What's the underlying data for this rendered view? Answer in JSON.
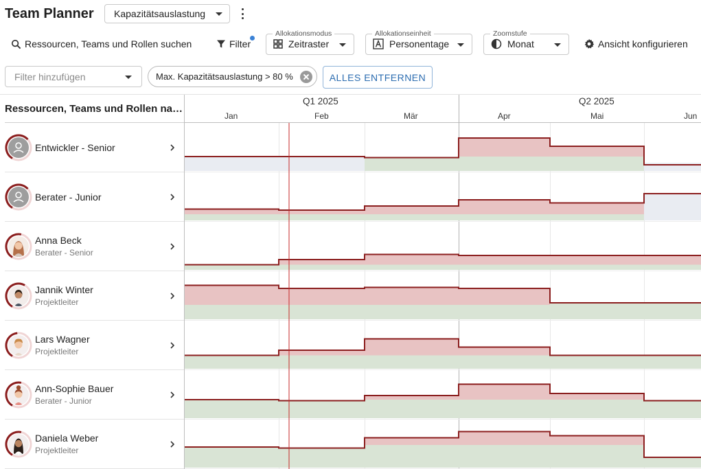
{
  "app": {
    "title": "Team Planner",
    "view": "Kapazitätsauslastung"
  },
  "toolbar": {
    "search_label": "Ressourcen, Teams und Rollen suchen",
    "filter_label": "Filter",
    "allocation_mode": {
      "legend": "Allokationsmodus",
      "value": "Zeitraster"
    },
    "allocation_unit": {
      "legend": "Allokationseinheit",
      "value": "Personentage"
    },
    "zoom": {
      "legend": "Zoomstufe",
      "value": "Monat"
    },
    "configure_label": "Ansicht konfigurieren"
  },
  "filters": {
    "add_placeholder": "Filter hinzufügen",
    "active_chip": "Max. Kapazitätsauslastung > 80 %",
    "clear_all": "ALLES ENTFERNEN"
  },
  "list_header": "Ressourcen, Teams und Rollen nach Kapazitätsauslastung",
  "timeline": {
    "quarters": [
      "Q1 2025",
      "Q2 2025"
    ],
    "months": [
      "Jan",
      "Feb",
      "Mär",
      "Apr",
      "Mai",
      "Jun"
    ]
  },
  "colors": {
    "over": "#e8c3c3",
    "over_line": "#8b1e1e",
    "under": "#d9e4d5",
    "under_line": "#4f7a64",
    "free": "#e9ecf2",
    "today": "#c62828"
  },
  "rows": [
    {
      "name": "Entwickler - Senior",
      "role": "",
      "avatar": "role-placeholder-icon",
      "ring": 0.55,
      "demand": [
        0,
        0,
        0.65,
        1.6,
        1.2,
        0
      ],
      "capacity": [
        0.7,
        0.7,
        0.7,
        0.7,
        0.7,
        0.3
      ]
    },
    {
      "name": "Berater - Junior",
      "role": "",
      "avatar": "role-placeholder-icon",
      "ring": 0.55,
      "demand": [
        0.55,
        0.5,
        0.7,
        1.0,
        0.85,
        0
      ],
      "capacity": [
        0.3,
        0.3,
        0.3,
        0.3,
        0.3,
        1.3
      ]
    },
    {
      "name": "Anna Beck",
      "role": "Berater - Senior",
      "avatar": "woman-avatar",
      "ring": 0.45,
      "demand": [
        0.25,
        0.5,
        0.75,
        0.7,
        0.7,
        0.7
      ],
      "capacity": [
        0.25,
        0.25,
        0.25,
        0.25,
        0.25,
        0.25
      ]
    },
    {
      "name": "Jannik Winter",
      "role": "Projektleiter",
      "avatar": "man-beard-avatar",
      "ring": 0.5,
      "demand": [
        1.65,
        1.5,
        1.55,
        1.5,
        0.8,
        0.8
      ],
      "capacity": [
        0.7,
        0.7,
        0.7,
        0.7,
        0.8,
        0.8
      ]
    },
    {
      "name": "Lars Wagner",
      "role": "Projektleiter",
      "avatar": "man-blond-avatar",
      "ring": 0.4,
      "demand": [
        0.65,
        0.9,
        1.45,
        1.05,
        0.65,
        0.65
      ],
      "capacity": [
        0.65,
        0.65,
        0.65,
        0.65,
        0.65,
        0.65
      ]
    },
    {
      "name": "Ann-Sophie Bauer",
      "role": "Berater - Junior",
      "avatar": "woman-bun-avatar",
      "ring": 0.45,
      "demand": [
        0.9,
        0.85,
        1.1,
        1.65,
        1.2,
        0.85
      ],
      "capacity": [
        0.9,
        0.9,
        0.9,
        0.9,
        0.9,
        0.9
      ]
    },
    {
      "name": "Daniela Weber",
      "role": "Projektleiter",
      "avatar": "woman-dark-avatar",
      "ring": 0.45,
      "demand": [
        1.0,
        0.95,
        1.45,
        1.75,
        1.55,
        0.5
      ],
      "capacity": [
        1.1,
        1.1,
        1.1,
        1.1,
        1.1,
        0.8
      ]
    }
  ]
}
